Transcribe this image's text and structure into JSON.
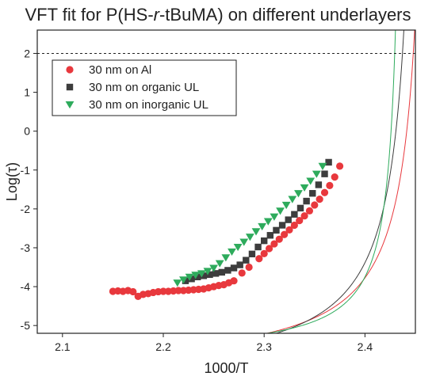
{
  "chart_data": {
    "type": "scatter",
    "title_prefix": "VFT fit for P(HS-",
    "title_italic": "r",
    "title_suffix": "-tBuMA) on different underlayers",
    "xlabel": "1000/T",
    "ylabel": "Log(τ)",
    "xlim": [
      2.075,
      2.45
    ],
    "ylim": [
      -5.2,
      2.6
    ],
    "x_ticks": [
      "2.1",
      "2.2",
      "2.3",
      "2.4"
    ],
    "x_tick_values": [
      2.1,
      2.2,
      2.3,
      2.4
    ],
    "y_ticks": [
      "-5",
      "-4",
      "-3",
      "-2",
      "-1",
      "0",
      "1",
      "2"
    ],
    "y_tick_values": [
      -5,
      -4,
      -3,
      -2,
      -1,
      0,
      1,
      2
    ],
    "reference_line_y": 2,
    "legend_position": "top-left",
    "series": [
      {
        "name": "30 nm on Al",
        "color": "#e8383d",
        "marker": "circle",
        "x": [
          2.15,
          2.155,
          2.16,
          2.165,
          2.17,
          2.175,
          2.18,
          2.185,
          2.19,
          2.195,
          2.2,
          2.205,
          2.21,
          2.215,
          2.22,
          2.225,
          2.23,
          2.235,
          2.24,
          2.245,
          2.25,
          2.255,
          2.26,
          2.265,
          2.27,
          2.278,
          2.285,
          2.295,
          2.3,
          2.305,
          2.31,
          2.315,
          2.32,
          2.325,
          2.33,
          2.335,
          2.34,
          2.345,
          2.35,
          2.355,
          2.36,
          2.365,
          2.37,
          2.375
        ],
        "y": [
          -4.12,
          -4.11,
          -4.12,
          -4.1,
          -4.13,
          -4.25,
          -4.2,
          -4.18,
          -4.15,
          -4.13,
          -4.12,
          -4.12,
          -4.11,
          -4.1,
          -4.1,
          -4.09,
          -4.08,
          -4.07,
          -4.06,
          -4.03,
          -4.0,
          -3.97,
          -3.95,
          -3.9,
          -3.85,
          -3.65,
          -3.5,
          -3.28,
          -3.15,
          -3.02,
          -2.9,
          -2.78,
          -2.66,
          -2.54,
          -2.42,
          -2.3,
          -2.18,
          -2.05,
          -1.9,
          -1.75,
          -1.58,
          -1.4,
          -1.18,
          -0.9
        ]
      },
      {
        "name": "30 nm on organic UL",
        "color": "#3d3d3d",
        "marker": "square",
        "x": [
          2.222,
          2.228,
          2.234,
          2.24,
          2.246,
          2.252,
          2.258,
          2.264,
          2.27,
          2.276,
          2.282,
          2.288,
          2.294,
          2.3,
          2.306,
          2.312,
          2.318,
          2.324,
          2.33,
          2.336,
          2.342,
          2.348,
          2.354,
          2.36,
          2.364
        ],
        "y": [
          -3.85,
          -3.8,
          -3.75,
          -3.72,
          -3.69,
          -3.66,
          -3.63,
          -3.58,
          -3.52,
          -3.44,
          -3.32,
          -3.16,
          -2.98,
          -2.82,
          -2.68,
          -2.55,
          -2.42,
          -2.28,
          -2.14,
          -1.98,
          -1.8,
          -1.6,
          -1.38,
          -1.1,
          -0.8
        ]
      },
      {
        "name": "30 nm on inorganic UL",
        "color": "#2eab5c",
        "marker": "triangle-down",
        "x": [
          2.214,
          2.22,
          2.226,
          2.232,
          2.238,
          2.244,
          2.25,
          2.256,
          2.262,
          2.268,
          2.274,
          2.28,
          2.286,
          2.292,
          2.298,
          2.304,
          2.31,
          2.316,
          2.322,
          2.328,
          2.334,
          2.34,
          2.346,
          2.352,
          2.358
        ],
        "y": [
          -3.9,
          -3.82,
          -3.75,
          -3.7,
          -3.66,
          -3.6,
          -3.52,
          -3.4,
          -3.25,
          -3.1,
          -2.98,
          -2.85,
          -2.72,
          -2.58,
          -2.45,
          -2.32,
          -2.2,
          -2.05,
          -1.9,
          -1.75,
          -1.6,
          -1.45,
          -1.28,
          -1.1,
          -0.9
        ]
      }
    ]
  }
}
